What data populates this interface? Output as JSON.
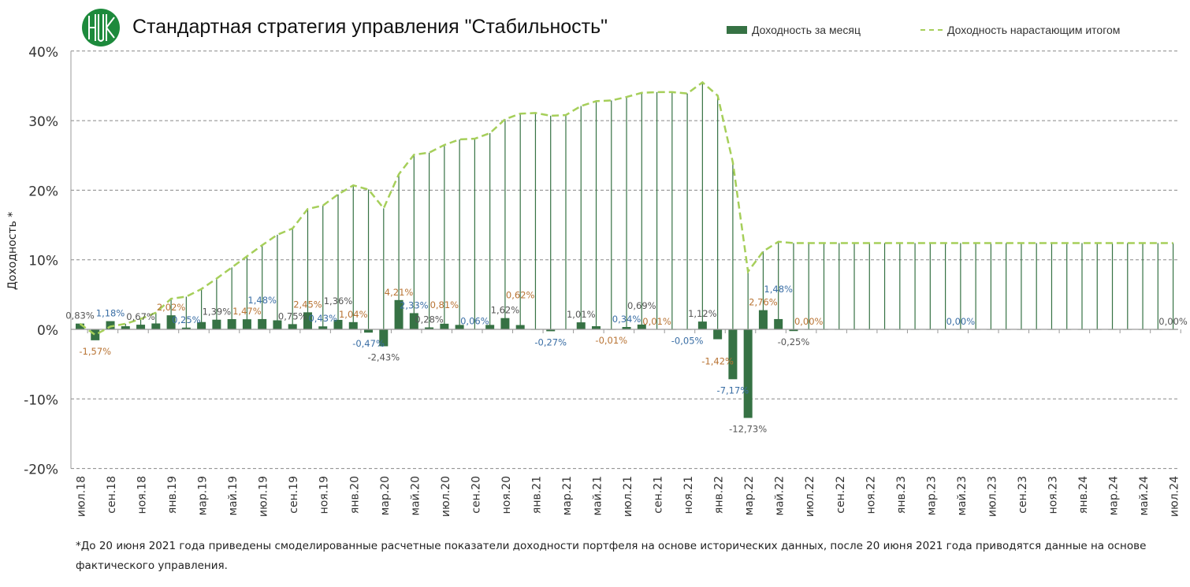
{
  "title": "Стандартная стратегия управления \"Стабильность\"",
  "footnote": "*До 20 июня 2021 года приведены смоделированные расчетные показатели доходности портфеля на основе исторических данных, после 20 июня 2021 года приводятся данные на основе фактического управления.",
  "colors": {
    "bar": "#367244",
    "line": "#a6cf5a",
    "dropline": "#367244",
    "grid": "#888888"
  },
  "chart_data": {
    "type": "bar+line",
    "title": "Стандартная стратегия управления \"Стабильность\"",
    "xlabel": "",
    "ylabel": "Доходность *",
    "ylim": [
      -20,
      40
    ],
    "yticks": [
      -20,
      -10,
      0,
      10,
      20,
      30,
      40
    ],
    "ytick_labels": [
      "-20%",
      "-10%",
      "0%",
      "10%",
      "20%",
      "30%",
      "40%"
    ],
    "grid": true,
    "legend_position": "top-right",
    "months": [
      "июл.18",
      "авг.18",
      "сен.18",
      "окт.18",
      "ноя.18",
      "дек.18",
      "янв.19",
      "фев.19",
      "мар.19",
      "апр.19",
      "май.19",
      "июн.19",
      "июл.19",
      "авг.19",
      "сен.19",
      "окт.19",
      "ноя.19",
      "дек.19",
      "янв.20",
      "фев.20",
      "мар.20",
      "апр.20",
      "май.20",
      "июн.20",
      "июл.20",
      "авг.20",
      "сен.20",
      "окт.20",
      "ноя.20",
      "дек.20",
      "янв.21",
      "фев.21",
      "мар.21",
      "апр.21",
      "май.21",
      "июн.21",
      "июл.21",
      "авг.21",
      "сен.21",
      "окт.21",
      "ноя.21",
      "дек.21",
      "янв.22",
      "фев.22",
      "мар.22",
      "апр.22",
      "май.22",
      "июн.22",
      "июл.22",
      "авг.22",
      "сен.22",
      "окт.22",
      "ноя.22",
      "дек.22",
      "янв.23",
      "фев.23",
      "мар.23",
      "апр.23",
      "май.23",
      "июн.23",
      "июл.23",
      "авг.23",
      "сен.23",
      "окт.23",
      "ноя.23",
      "дек.23",
      "янв.24",
      "фев.24",
      "мар.24",
      "апр.24",
      "май.24",
      "июн.24",
      "июл.24"
    ],
    "xtick_every": 2,
    "series": [
      {
        "name": "Доходность за месяц",
        "kind": "bar",
        "values": [
          0.83,
          -1.57,
          1.18,
          0.45,
          0.67,
          0.85,
          2.02,
          0.25,
          1.05,
          1.39,
          1.47,
          1.45,
          1.48,
          1.3,
          0.75,
          2.45,
          0.43,
          1.36,
          1.04,
          -0.47,
          -2.43,
          4.21,
          2.33,
          0.28,
          0.81,
          0.64,
          0.06,
          0.64,
          1.62,
          0.62,
          -0.05,
          -0.27,
          0.02,
          1.01,
          0.45,
          -0.01,
          0.34,
          0.69,
          0.01,
          0.0,
          -0.05,
          1.12,
          -1.42,
          -7.17,
          -12.73,
          2.76,
          1.48,
          -0.25,
          0,
          0,
          0,
          0,
          0,
          0,
          0,
          0,
          0,
          0,
          0,
          0,
          0,
          0,
          0,
          0,
          0,
          0,
          0,
          0,
          0,
          0,
          0,
          0,
          0
        ]
      },
      {
        "name": "Доходность нарастающим итогом",
        "kind": "line",
        "values": [
          0.8,
          -0.8,
          0.4,
          0.8,
          1.5,
          2.4,
          4.4,
          4.7,
          5.8,
          7.3,
          8.9,
          10.5,
          12.1,
          13.6,
          14.5,
          17.3,
          17.8,
          19.4,
          20.7,
          20.1,
          17.4,
          22.3,
          25.1,
          25.4,
          26.5,
          27.3,
          27.4,
          28.2,
          30.2,
          31.0,
          31.1,
          30.7,
          30.8,
          32.1,
          32.8,
          32.9,
          33.4,
          34.0,
          34.1,
          34.1,
          33.9,
          35.5,
          33.6,
          24.0,
          8.3,
          11.2,
          12.6,
          12.4,
          12.4,
          12.4,
          12.4,
          12.4,
          12.4,
          12.4,
          12.4,
          12.4,
          12.4,
          12.4,
          12.4,
          12.4,
          12.4,
          12.4,
          12.4,
          12.4,
          12.4,
          12.4,
          12.4,
          12.4,
          12.4,
          12.4,
          12.4,
          12.4,
          12.4
        ]
      }
    ],
    "data_labels": [
      {
        "month": 0,
        "text": "0,83%"
      },
      {
        "month": 1,
        "text": "-1,57%"
      },
      {
        "month": 2,
        "text": "1,18%"
      },
      {
        "month": 4,
        "text": "0,67%"
      },
      {
        "month": 6,
        "text": "2,02%"
      },
      {
        "month": 7,
        "text": "0,25%"
      },
      {
        "month": 9,
        "text": "1,39%"
      },
      {
        "month": 11,
        "text": "1,47%"
      },
      {
        "month": 12,
        "text": "1,48%"
      },
      {
        "month": 14,
        "text": "0,75%"
      },
      {
        "month": 15,
        "text": "2,45%"
      },
      {
        "month": 16,
        "text": "0,43%"
      },
      {
        "month": 17,
        "text": "1,36%"
      },
      {
        "month": 18,
        "text": "1,04%"
      },
      {
        "month": 19,
        "text": "-0,47%"
      },
      {
        "month": 20,
        "text": "-2,43%"
      },
      {
        "month": 21,
        "text": "4,21%"
      },
      {
        "month": 22,
        "text": "2,33%"
      },
      {
        "month": 23,
        "text": "0,28%"
      },
      {
        "month": 24,
        "text": "0,81%"
      },
      {
        "month": 26,
        "text": "0,06%"
      },
      {
        "month": 28,
        "text": "1,62%"
      },
      {
        "month": 29,
        "text": "0,62%"
      },
      {
        "month": 31,
        "text": "-0,27%"
      },
      {
        "month": 33,
        "text": "1,01%"
      },
      {
        "month": 35,
        "text": "-0,01%"
      },
      {
        "month": 36,
        "text": "0,34%"
      },
      {
        "month": 37,
        "text": "0,69%"
      },
      {
        "month": 38,
        "text": "0,01%"
      },
      {
        "month": 40,
        "text": "-0,05%"
      },
      {
        "month": 41,
        "text": "1,12%"
      },
      {
        "month": 42,
        "text": "-1,42%"
      },
      {
        "month": 43,
        "text": "-7,17%"
      },
      {
        "month": 44,
        "text": "-12,73%"
      },
      {
        "month": 45,
        "text": "2,76%"
      },
      {
        "month": 46,
        "text": "1,48%"
      },
      {
        "month": 47,
        "text": "-0,25%"
      },
      {
        "month": 48,
        "text": "0,00%"
      },
      {
        "month": 58,
        "text": "0,00%"
      },
      {
        "month": 72,
        "text": "0,00%"
      }
    ]
  }
}
